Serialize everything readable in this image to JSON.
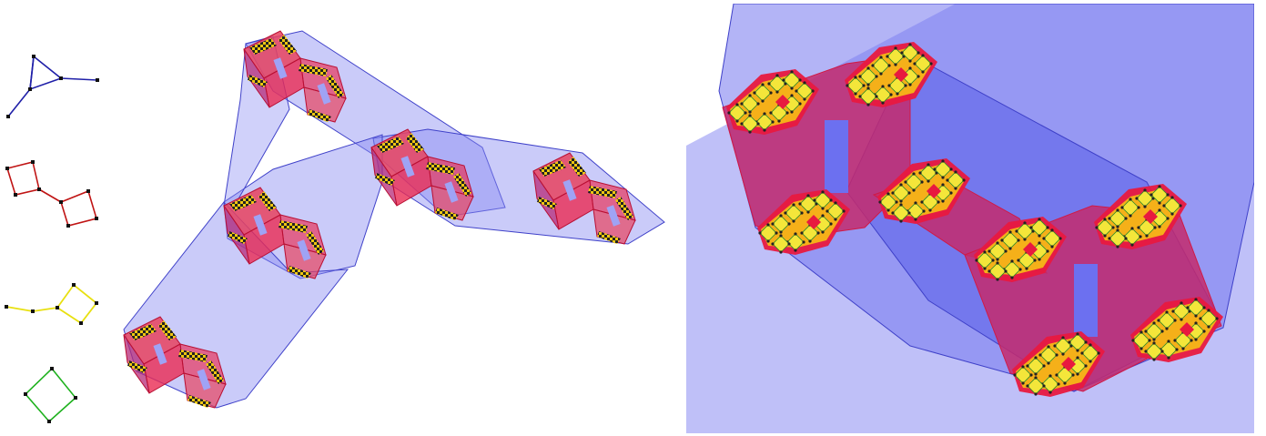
{
  "figure": {
    "description_labels": [],
    "colors": {
      "blue_shell": "#8a8cf2",
      "blue_edge": "#3f41c9",
      "red_shell": "#ea2b52",
      "red_edge": "#b80f33",
      "magenta_face": "#b62a78",
      "yellow_shell": "#f5ce12",
      "yellow_cell": "#f4e63a",
      "green_edge": "#24a824",
      "node": "#1a1a1a",
      "background": "#ffffff"
    },
    "legend_graphs": [
      {
        "name": "blue-graph",
        "shape": "triangle-with-spokes",
        "color": "#1f1fa8"
      },
      {
        "name": "red-graph",
        "shape": "two-squares-joined",
        "color": "#c01414"
      },
      {
        "name": "yellow-graph",
        "shape": "path-with-square",
        "color": "#e8e010"
      },
      {
        "name": "green-graph",
        "shape": "square",
        "color": "#1fb21f"
      }
    ],
    "panels": [
      "product-graph-overview",
      "product-graph-zoom"
    ]
  }
}
